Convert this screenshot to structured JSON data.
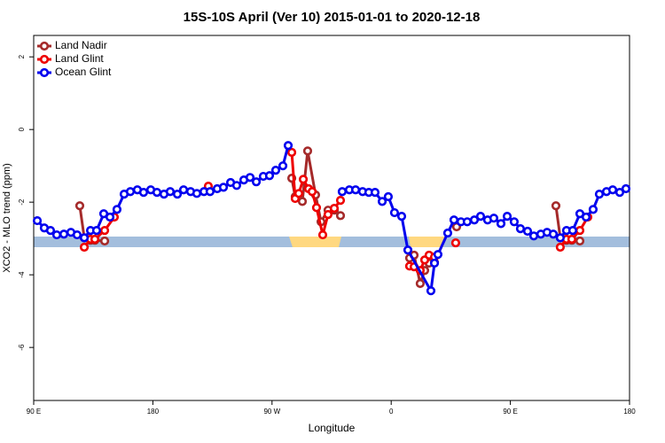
{
  "chart_data": {
    "type": "line",
    "title": "15S-10S April (Ver 10)   2015-01-01 to 2020-12-18",
    "x_label": "Longitude",
    "y_label": "XCO2 - MLO trend (ppm)",
    "xlim": [
      90,
      540
    ],
    "ylim": [
      -7.46,
      2.59
    ],
    "xticks": [
      {
        "value": 90,
        "label": "90 E"
      },
      180,
      {
        "value": 270,
        "label": "90 W"
      },
      {
        "value": 360,
        "label": "0"
      },
      {
        "value": 450,
        "label": "90 E"
      },
      {
        "value": 540,
        "label": "180"
      }
    ],
    "yticks": [
      2,
      0,
      -2,
      -4,
      -6
    ],
    "legend": "top-left",
    "series": [
      {
        "name": "Land Nadir",
        "color": "#a52a2a",
        "x": [
          124.8,
          128.2,
          132.9,
          136.2,
          143.6,
          null,
          284.9,
          287.5,
          292.9,
          296.9,
          302.9,
          307.0,
          312.3,
          317.0,
          321.7,
          null,
          373.9,
          377.3,
          381.9,
          385.3,
          388.6,
          392.7,
          null,
          409.4,
          null,
          484.4,
          487.7,
          492.4,
          496.4,
          502.5
        ],
        "values": [
          -2.1,
          -2.98,
          -3.05,
          -3.05,
          -3.07,
          null,
          -1.34,
          -1.85,
          -1.98,
          -0.59,
          -1.8,
          -2.54,
          -2.22,
          -2.22,
          -2.37,
          null,
          -3.54,
          -3.46,
          -4.24,
          -3.88,
          -3.68,
          -3.66,
          null,
          -2.68,
          null,
          -2.1,
          -2.98,
          -3.05,
          -3.05,
          -3.07
        ]
      },
      {
        "name": "Land Glint",
        "color": "#ee0000",
        "x": [
          128.2,
          132.9,
          136.2,
          143.6,
          150.9,
          null,
          221.9,
          null,
          284.9,
          287.5,
          290.2,
          293.6,
          297.6,
          300.3,
          303.6,
          308.3,
          312.3,
          317.0,
          321.7,
          null,
          373.9,
          377.3,
          381.9,
          385.3,
          388.6,
          392.7,
          null,
          408.7,
          null,
          487.7,
          492.4,
          496.4,
          502.5,
          508.5
        ],
        "values": [
          -3.24,
          -3.02,
          -3.02,
          -2.78,
          -2.41,
          null,
          -1.56,
          null,
          -0.63,
          -1.9,
          -1.76,
          -1.37,
          -1.63,
          -1.71,
          -2.15,
          -2.9,
          -2.34,
          -2.17,
          -1.95,
          null,
          -3.76,
          -3.78,
          -3.88,
          -3.59,
          -3.46,
          -3.51,
          null,
          -3.12,
          null,
          -3.24,
          -3.02,
          -3.02,
          -2.78,
          -2.41
        ]
      },
      {
        "name": "Ocean Glint",
        "color": "#0000ee",
        "x": [
          92.7,
          98.0,
          102.7,
          107.4,
          112.8,
          118.1,
          122.8,
          128.2,
          132.9,
          137.5,
          142.9,
          147.6,
          152.9,
          158.3,
          163.0,
          168.3,
          173.0,
          178.4,
          183.1,
          188.4,
          193.1,
          198.5,
          203.2,
          208.5,
          213.2,
          218.6,
          223.2,
          228.6,
          233.3,
          238.7,
          243.3,
          248.7,
          253.4,
          258.1,
          263.4,
          268.1,
          272.8,
          278.2,
          282.2,
          null,
          323.0,
          328.4,
          333.1,
          338.4,
          343.1,
          347.8,
          353.2,
          357.8,
          362.5,
          367.9,
          372.6,
          390.0,
          392.7,
          395.3,
          402.7,
          407.4,
          412.7,
          417.4,
          422.8,
          427.5,
          432.8,
          437.5,
          442.9,
          447.6,
          452.9,
          457.6,
          463.0,
          467.7,
          473.0,
          477.7,
          482.4,
          487.7,
          492.4,
          497.1,
          502.5,
          507.2,
          512.5,
          517.2,
          522.6,
          527.3,
          532.6,
          537.3
        ],
        "values": [
          -2.51,
          -2.71,
          -2.78,
          -2.9,
          -2.88,
          -2.83,
          -2.9,
          -2.98,
          -2.78,
          -2.78,
          -2.32,
          -2.41,
          -2.2,
          -1.78,
          -1.71,
          -1.66,
          -1.73,
          -1.66,
          -1.73,
          -1.78,
          -1.71,
          -1.78,
          -1.66,
          -1.71,
          -1.76,
          -1.71,
          -1.71,
          -1.63,
          -1.59,
          -1.46,
          -1.54,
          -1.39,
          -1.32,
          -1.44,
          -1.29,
          -1.27,
          -1.12,
          -1.0,
          -0.44,
          null,
          -1.71,
          -1.66,
          -1.66,
          -1.71,
          -1.73,
          -1.73,
          -1.98,
          -1.85,
          -2.29,
          -2.39,
          -3.32,
          -4.44,
          -3.68,
          -3.44,
          -2.85,
          -2.49,
          -2.54,
          -2.54,
          -2.49,
          -2.39,
          -2.49,
          -2.44,
          -2.59,
          -2.39,
          -2.54,
          -2.73,
          -2.8,
          -2.93,
          -2.88,
          -2.83,
          -2.88,
          -2.98,
          -2.78,
          -2.78,
          -2.32,
          -2.41,
          -2.2,
          -1.78,
          -1.71,
          -1.66,
          -1.73,
          -1.63
        ]
      }
    ]
  }
}
